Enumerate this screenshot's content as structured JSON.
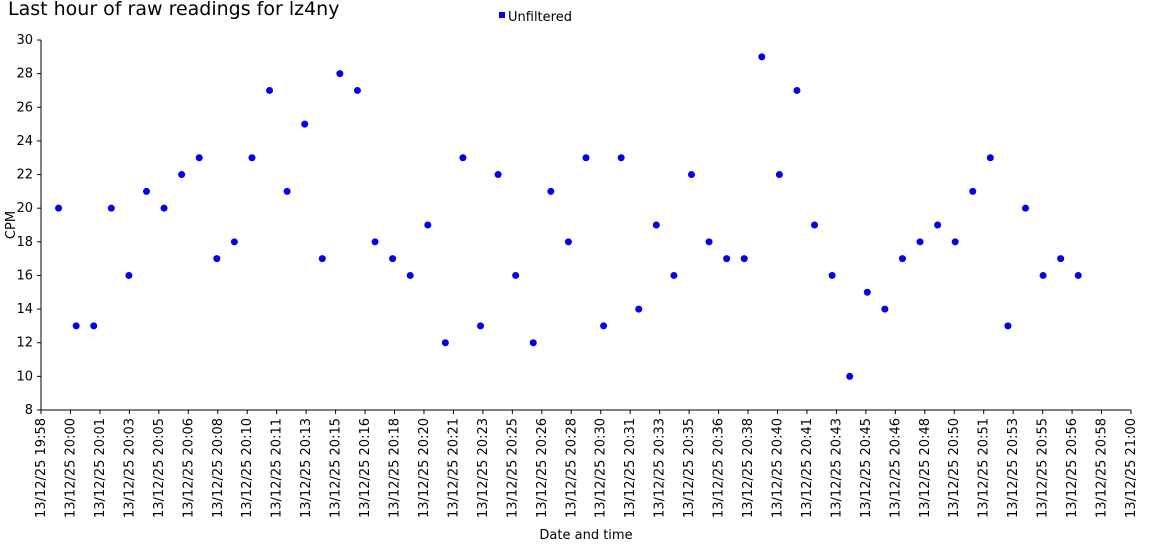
{
  "chart_data": {
    "type": "scatter",
    "title": "Last hour of raw readings for lz4ny",
    "xlabel": "Date and time",
    "ylabel": "CPM",
    "ylim": [
      8,
      30
    ],
    "yticks": [
      8,
      10,
      12,
      14,
      16,
      18,
      20,
      22,
      24,
      26,
      28,
      30
    ],
    "xlim": [
      "13/12/25 19:58",
      "13/12/25 21:00"
    ],
    "xtick_labels": [
      "13/12/25 19:58",
      "13/12/25 20:00",
      "13/12/25 20:01",
      "13/12/25 20:03",
      "13/12/25 20:05",
      "13/12/25 20:06",
      "13/12/25 20:08",
      "13/12/25 20:10",
      "13/12/25 20:11",
      "13/12/25 20:13",
      "13/12/25 20:15",
      "13/12/25 20:16",
      "13/12/25 20:18",
      "13/12/25 20:20",
      "13/12/25 20:21",
      "13/12/25 20:23",
      "13/12/25 20:25",
      "13/12/25 20:26",
      "13/12/25 20:28",
      "13/12/25 20:30",
      "13/12/25 20:31",
      "13/12/25 20:33",
      "13/12/25 20:35",
      "13/12/25 20:36",
      "13/12/25 20:38",
      "13/12/25 20:40",
      "13/12/25 20:41",
      "13/12/25 20:43",
      "13/12/25 20:45",
      "13/12/25 20:46",
      "13/12/25 20:48",
      "13/12/25 20:50",
      "13/12/25 20:51",
      "13/12/25 20:53",
      "13/12/25 20:55",
      "13/12/25 20:56",
      "13/12/25 20:58",
      "13/12/25 21:00"
    ],
    "grid": false,
    "legend_position": "top-center",
    "series": [
      {
        "name": "Unfiltered",
        "color": "#0000ee",
        "values": [
          20,
          13,
          13,
          20,
          16,
          21,
          20,
          22,
          23,
          17,
          18,
          23,
          27,
          21,
          25,
          17,
          28,
          27,
          18,
          17,
          16,
          19,
          12,
          23,
          13,
          22,
          16,
          12,
          21,
          18,
          23,
          13,
          23,
          14,
          19,
          16,
          22,
          18,
          17,
          17,
          29,
          22,
          27,
          19,
          16,
          10,
          15,
          14,
          17,
          18,
          19,
          18,
          21,
          23,
          13,
          20,
          16,
          17,
          16
        ]
      }
    ]
  }
}
